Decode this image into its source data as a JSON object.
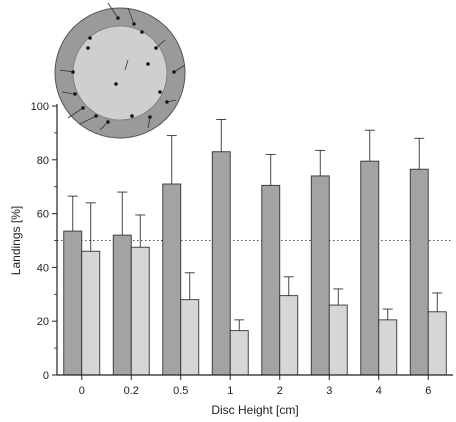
{
  "chart_data": {
    "type": "bar",
    "title": "",
    "xlabel": "Disc Height [cm]",
    "ylabel": "Landings [%]",
    "ylim": [
      0,
      100
    ],
    "yticks": [
      0,
      20,
      40,
      60,
      80,
      100
    ],
    "categories": [
      "0",
      "0.2",
      "0.5",
      "1",
      "2",
      "3",
      "4",
      "6"
    ],
    "series": [
      {
        "values": [
          53.5,
          52,
          71,
          83,
          70.5,
          74,
          79.5,
          76.5
        ],
        "errors": [
          13,
          16,
          18,
          12,
          11.5,
          9.5,
          11.5,
          11.5
        ],
        "color": "#a3a3a3"
      },
      {
        "values": [
          46,
          47.5,
          28,
          16.5,
          29.5,
          26,
          20.5,
          23.5
        ],
        "errors": [
          18,
          12,
          10,
          4,
          7,
          6,
          4,
          7
        ],
        "color": "#d6d6d6"
      }
    ],
    "reference_line": 50,
    "grid": false,
    "legend": "none"
  },
  "inset": {
    "shape": "circle",
    "outer_color": "#9a9a9a",
    "inner_color": "#cfcfcf"
  }
}
